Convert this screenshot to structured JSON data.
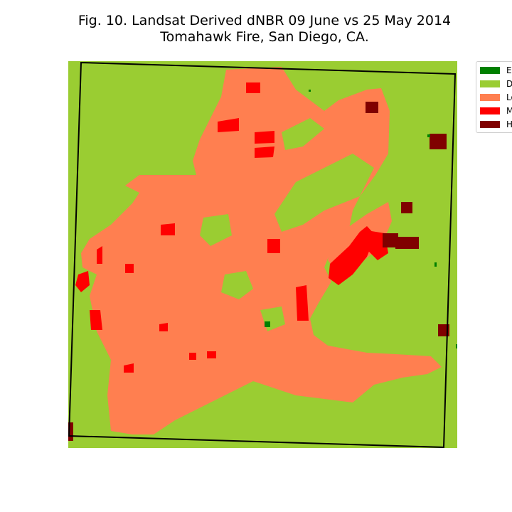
{
  "title": {
    "line1": "Fig. 10. Landsat Derived dNBR 09 June vs 25 May 2014",
    "line2": "Tomahawk Fire, San Diego, CA."
  },
  "legend": [
    {
      "label": "E",
      "color": "#008000"
    },
    {
      "label": "D",
      "color": "#9acd32"
    },
    {
      "label": "Lo",
      "color": "#ff7f50"
    },
    {
      "label": "M",
      "color": "#ff0000"
    },
    {
      "label": "H",
      "color": "#800000"
    }
  ],
  "colors": {
    "background": "#9acd32",
    "low": "#ff7f50",
    "moderate": "#ff0000",
    "high": "#800000",
    "enhanced": "#008000",
    "boundary": "#000000"
  }
}
